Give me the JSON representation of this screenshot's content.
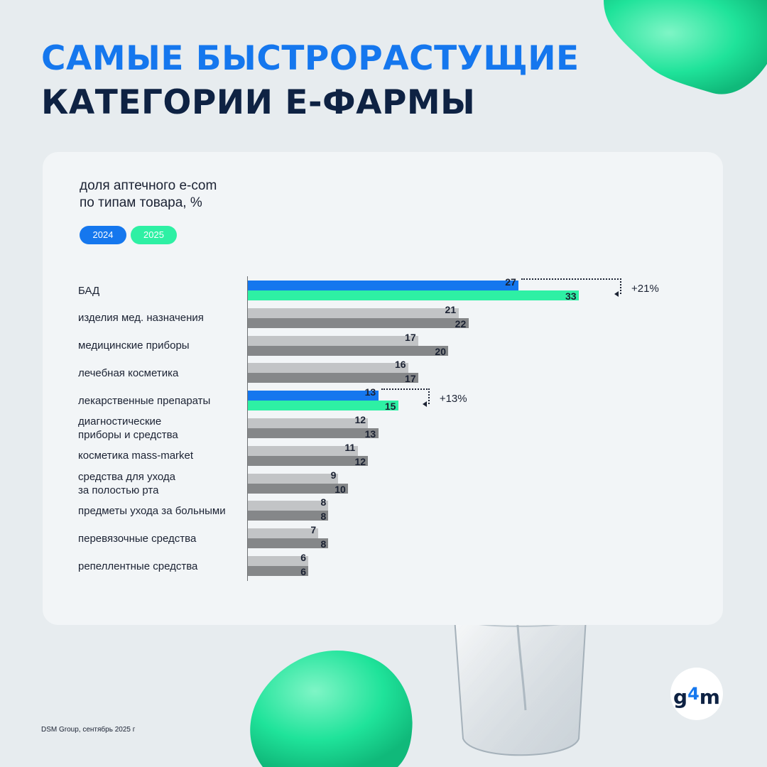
{
  "title": {
    "line1": "САМЫЕ БЫСТРОРАСТУЩИЕ",
    "line2": "КАТЕГОРИИ Е-ФАРМЫ"
  },
  "subtitle": {
    "line1": "доля аптечного e-com",
    "line2": "по типам товара, %"
  },
  "legend": [
    {
      "label": "2024",
      "color": "#1577ee"
    },
    {
      "label": "2025",
      "color": "#2ef0a4"
    }
  ],
  "colors": {
    "highlight_2024": "#1577ee",
    "highlight_2025": "#2ef0a4",
    "other_2024": "#c2c4c6",
    "other_2025": "#858789"
  },
  "chart_data": {
    "type": "bar",
    "orientation": "horizontal",
    "categories": [
      [
        "БАД"
      ],
      [
        "изделия мед. назначения"
      ],
      [
        "медицинские приборы"
      ],
      [
        "лечебная косметика"
      ],
      [
        "лекарственные препараты"
      ],
      [
        "диагностические",
        "приборы и средства"
      ],
      [
        "косметика mass-market"
      ],
      [
        "средства для ухода",
        "за полостью рта"
      ],
      [
        "предметы ухода за больными"
      ],
      [
        "перевязочные средства"
      ],
      [
        "репеллентные средства"
      ]
    ],
    "series": [
      {
        "name": "2024",
        "values": [
          27,
          21,
          17,
          16,
          13,
          12,
          11,
          9,
          8,
          7,
          6
        ]
      },
      {
        "name": "2025",
        "values": [
          33,
          22,
          20,
          17,
          15,
          13,
          12,
          10,
          8,
          8,
          6
        ]
      }
    ],
    "highlighted": [
      0,
      4
    ],
    "annotations": [
      {
        "category_index": 0,
        "text": "+21%"
      },
      {
        "category_index": 4,
        "text": "+13%"
      }
    ],
    "xlim": [
      0,
      33
    ]
  },
  "source": "DSM Group, сентябрь 2025 г",
  "logo": {
    "text": "g",
    "accent": "4",
    "tail": "m"
  }
}
